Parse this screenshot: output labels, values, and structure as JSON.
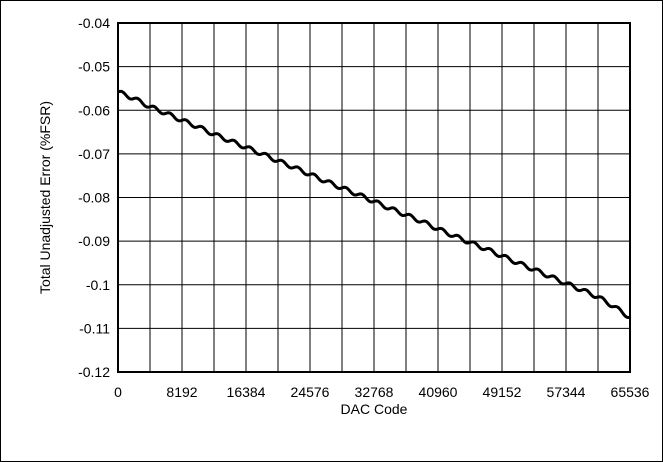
{
  "chart_data": {
    "type": "line",
    "title": "",
    "xlabel": "DAC Code",
    "ylabel": "Total Unadjusted Error (%FSR)",
    "xlim": [
      0,
      65536
    ],
    "ylim": [
      -0.12,
      -0.04
    ],
    "grid": true,
    "x_ticks": [
      0,
      4096,
      8192,
      12288,
      16384,
      20480,
      24576,
      28672,
      32768,
      36864,
      40960,
      45056,
      49152,
      53248,
      57344,
      61440,
      65536
    ],
    "x_tick_labels": [
      "0",
      "8192",
      "16384",
      "24576",
      "32768",
      "40960",
      "49152",
      "57344",
      "65536"
    ],
    "x_tick_label_values": [
      0,
      8192,
      16384,
      24576,
      32768,
      40960,
      49152,
      57344,
      65536
    ],
    "y_ticks": [
      -0.12,
      -0.11,
      -0.1,
      -0.09,
      -0.08,
      -0.07,
      -0.06,
      -0.05,
      -0.04
    ],
    "y_tick_labels": [
      "-0.12",
      "-0.11",
      "-0.1",
      "-0.09",
      "-0.08",
      "-0.07",
      "-0.06",
      "-0.05",
      "-0.04"
    ],
    "series": [
      {
        "color": "#000000",
        "x": [
          0,
          2048,
          4096,
          6144,
          8192,
          10240,
          12288,
          14336,
          16384,
          18432,
          20480,
          22528,
          24576,
          26624,
          28672,
          30720,
          32768,
          34816,
          36864,
          38912,
          40960,
          43008,
          45056,
          47104,
          49152,
          51200,
          53248,
          55296,
          57344,
          59392,
          61440,
          63488,
          65536
        ],
        "y": [
          -0.0558,
          -0.0573,
          -0.0592,
          -0.0607,
          -0.0623,
          -0.0638,
          -0.0655,
          -0.067,
          -0.0685,
          -0.07,
          -0.0716,
          -0.0731,
          -0.0747,
          -0.0763,
          -0.0778,
          -0.0793,
          -0.0809,
          -0.0825,
          -0.084,
          -0.0855,
          -0.0872,
          -0.0888,
          -0.0903,
          -0.0918,
          -0.0934,
          -0.095,
          -0.0965,
          -0.0981,
          -0.0997,
          -0.1012,
          -0.1028,
          -0.105,
          -0.1075
        ]
      }
    ]
  }
}
